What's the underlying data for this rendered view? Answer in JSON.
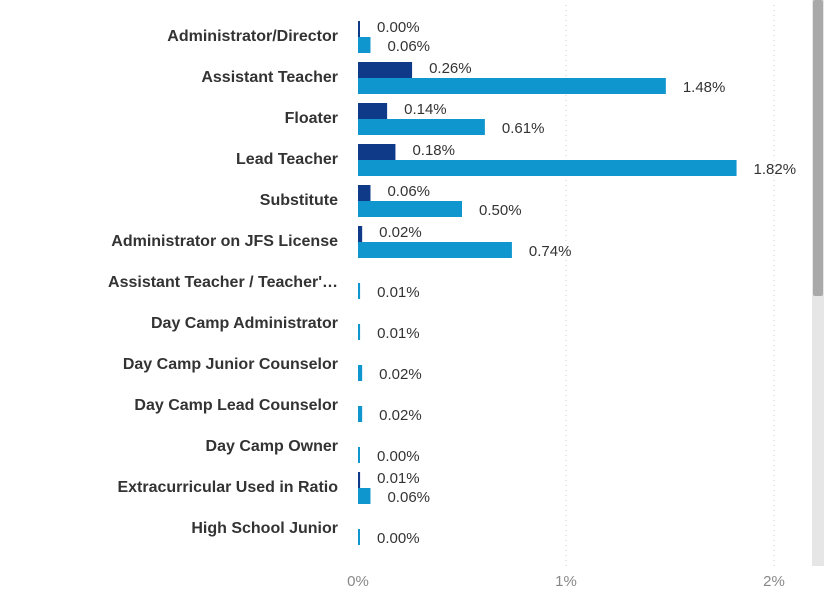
{
  "chart_data": {
    "type": "bar",
    "orientation": "horizontal",
    "categories": [
      "Administrator/Director",
      "Assistant Teacher",
      "Floater",
      "Lead Teacher",
      "Substitute",
      "Administrator on JFS License",
      "Assistant Teacher / Teacher'…",
      "Day Camp Administrator",
      "Day Camp Junior Counselor",
      "Day Camp Lead Counselor",
      "Day Camp Owner",
      "Extracurricular Used in Ratio",
      "High School Junior"
    ],
    "series": [
      {
        "color": "#0f3a87",
        "values": [
          0.0,
          0.26,
          0.14,
          0.18,
          0.06,
          0.02,
          null,
          null,
          null,
          null,
          null,
          0.01,
          null
        ],
        "value_labels": [
          "0.00%",
          "0.26%",
          "0.14%",
          "0.18%",
          "0.06%",
          "0.02%",
          null,
          null,
          null,
          null,
          null,
          "0.01%",
          null
        ]
      },
      {
        "color": "#0f96cf",
        "values": [
          0.06,
          1.48,
          0.61,
          1.82,
          0.5,
          0.74,
          0.01,
          0.01,
          0.02,
          0.02,
          0.0,
          0.06,
          0.0
        ],
        "value_labels": [
          "0.06%",
          "1.48%",
          "0.61%",
          "1.82%",
          "0.50%",
          "0.74%",
          "0.01%",
          "0.01%",
          "0.02%",
          "0.02%",
          "0.00%",
          "0.06%",
          "0.00%"
        ]
      }
    ],
    "xlim": [
      0,
      2
    ],
    "xticks": [
      {
        "value": 0,
        "label": "0%"
      },
      {
        "value": 1,
        "label": "1%"
      },
      {
        "value": 2,
        "label": "2%"
      }
    ],
    "grid": true
  }
}
